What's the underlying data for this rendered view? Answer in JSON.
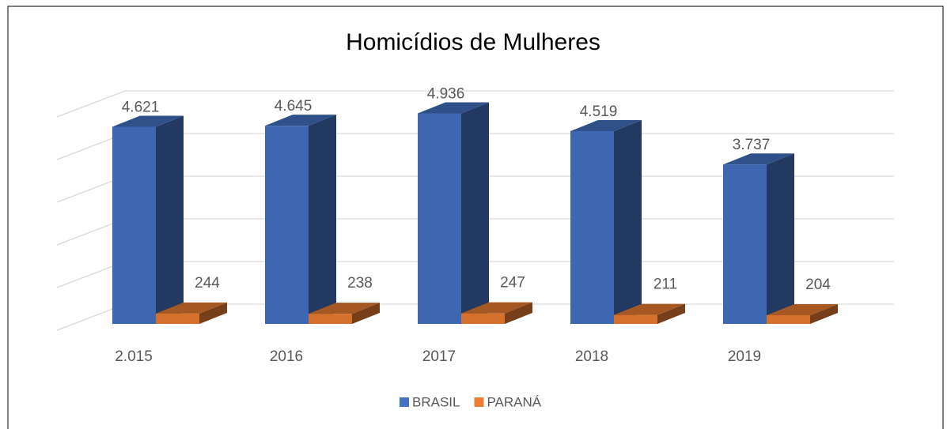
{
  "chart_data": {
    "type": "bar3d",
    "title": "Homicídios de Mulheres",
    "categories": [
      "2.015",
      "2016",
      "2017",
      "2018",
      "2019"
    ],
    "series": [
      {
        "name": "BRASIL",
        "color": "#4472c4",
        "values": [
          4621,
          4645,
          4936,
          4519,
          3737
        ],
        "value_labels": [
          "4.621",
          "4.645",
          "4.936",
          "4.519",
          "3.737"
        ]
      },
      {
        "name": "PARANÁ",
        "color": "#ed7d31",
        "values": [
          244,
          238,
          247,
          211,
          204
        ]
      }
    ],
    "ylim": [
      0,
      5000
    ],
    "yticks": [
      0,
      1000,
      2000,
      3000,
      4000,
      5000
    ],
    "grid": true,
    "legend": "bottom"
  }
}
